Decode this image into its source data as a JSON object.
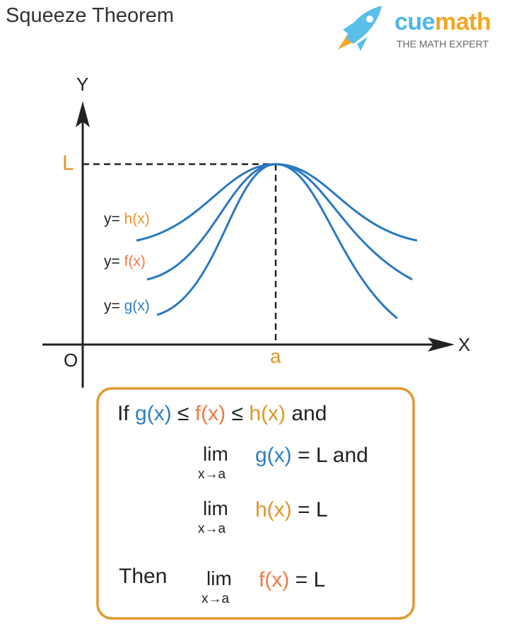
{
  "title": "Squeeze Theorem",
  "logo": {
    "brand_part1": "cue",
    "brand_part2": "math",
    "tagline": "THE MATH EXPERT"
  },
  "graph": {
    "y_axis": "Y",
    "x_axis": "X",
    "origin": "O",
    "limit_label": "L",
    "point_label": "a",
    "curves": [
      {
        "prefix": "y=",
        "name": "h(x)",
        "color": "#e0962a"
      },
      {
        "prefix": "y=",
        "name": "f(x)",
        "color": "#f07a42"
      },
      {
        "prefix": "y=",
        "name": "g(x)",
        "color": "#2f7fc0"
      }
    ],
    "curve_color": "#2a78c2"
  },
  "theorem": {
    "line1": {
      "if": "If",
      "g": "g(x)",
      "le1": "≤",
      "f": "f(x)",
      "le2": "≤",
      "h": "h(x)",
      "and": "and"
    },
    "line2": {
      "lim": "lim",
      "sub": "x→a",
      "fn": "g(x)",
      "rest": "= L and"
    },
    "line3": {
      "lim": "lim",
      "sub": "x→a",
      "fn": "h(x)",
      "rest": "= L"
    },
    "line4": {
      "then": "Then",
      "lim": "lim",
      "sub": "x→a",
      "fn": "f(x)",
      "rest": "= L"
    },
    "border_color": "#e09a2e"
  }
}
